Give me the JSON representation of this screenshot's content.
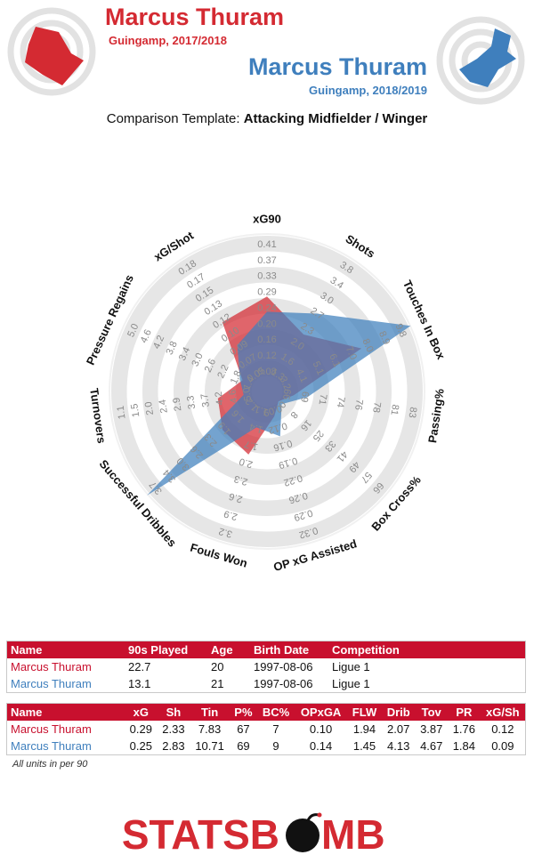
{
  "header": {
    "player_a": "Marcus Thuram",
    "club_season_a": "Guingamp, 2017/2018",
    "player_b": "Marcus Thuram",
    "club_season_b": "Guingamp, 2018/2019",
    "template_prefix": "Comparison Template:",
    "template_name": "Attacking Midfielder / Winger"
  },
  "colors": {
    "a": "#d42a32",
    "b": "#3f7fbd",
    "table_header": "#c8102e"
  },
  "chart_data": {
    "type": "radar",
    "axes": [
      {
        "label": "xG90",
        "ticks": [
          "0.08",
          "0.12",
          "0.16",
          "0.20",
          "0.24",
          "0.29",
          "0.33",
          "0.37",
          "0.41"
        ]
      },
      {
        "label": "Shots",
        "ticks": [
          "1.3",
          "1.6",
          "2.0",
          "2.3",
          "2.7",
          "3.0",
          "3.4",
          "3.8"
        ]
      },
      {
        "label": "Touches In Box",
        "ticks": [
          "3.2",
          "4.1",
          "5.1",
          "6.1",
          "7.0",
          "8.0",
          "8.9",
          "9.8"
        ]
      },
      {
        "label": "Passing%",
        "ticks": [
          "66",
          "69",
          "71",
          "74",
          "76",
          "78",
          "81",
          "83"
        ]
      },
      {
        "label": "Box Cross%",
        "ticks": [
          "0",
          "8",
          "16",
          "25",
          "33",
          "41",
          "49",
          "57",
          "66"
        ]
      },
      {
        "label": "OP xG Assisted",
        "ticks": [
          "0.09",
          "0.12",
          "0.16",
          "0.19",
          "0.22",
          "0.26",
          "0.29",
          "0.32"
        ]
      },
      {
        "label": "Fouls Won",
        "ticks": [
          "1.1",
          "1.4",
          "1.7",
          "2.0",
          "2.3",
          "2.6",
          "2.9",
          "3.2"
        ]
      },
      {
        "label": "Successful Dribbles",
        "ticks": [
          "1.2",
          "1.6",
          "1.9",
          "2.3",
          "2.6",
          "3.0",
          "3.4",
          "3.7"
        ]
      },
      {
        "label": "Turnovers",
        "ticks": [
          "5.0",
          "4.6",
          "4.2",
          "3.7",
          "3.3",
          "2.9",
          "2.4",
          "2.0",
          "1.5",
          "1.1"
        ]
      },
      {
        "label": "Pressure Regains",
        "ticks": [
          "1.4",
          "1.8",
          "2.2",
          "2.6",
          "3.0",
          "3.4",
          "3.8",
          "4.2",
          "4.6",
          "5.0"
        ]
      },
      {
        "label": "xG/Shot",
        "ticks": [
          "0.05",
          "0.07",
          "0.09",
          "0.10",
          "0.12",
          "0.13",
          "0.15",
          "0.17",
          "0.18"
        ]
      }
    ],
    "series": [
      {
        "name": "Marcus Thuram",
        "color": "#d42a32",
        "values": [
          0.29,
          2.33,
          7.83,
          67,
          7,
          0.1,
          1.94,
          2.07,
          3.87,
          1.76,
          0.12
        ]
      },
      {
        "name": "Marcus Thuram",
        "color": "#3f7fbd",
        "values": [
          0.25,
          2.83,
          10.71,
          69,
          9,
          0.14,
          1.45,
          4.13,
          4.67,
          1.84,
          0.09
        ]
      }
    ],
    "ranges": [
      [
        0.04,
        0.45
      ],
      [
        0.97,
        4.1
      ],
      [
        2.3,
        10.6
      ],
      [
        63,
        86
      ],
      [
        0,
        72
      ],
      [
        0.05,
        0.35
      ],
      [
        0.8,
        3.5
      ],
      [
        0.9,
        4.0
      ],
      [
        5.4,
        0.6
      ],
      [
        1.0,
        5.4
      ],
      [
        0.03,
        0.2
      ]
    ]
  },
  "table1": {
    "headers": [
      "Name",
      "90s Played",
      "Age",
      "Birth Date",
      "Competition"
    ],
    "rows": [
      [
        "Marcus Thuram",
        "22.7",
        "20",
        "1997-08-06",
        "Ligue 1"
      ],
      [
        "Marcus Thuram",
        "13.1",
        "21",
        "1997-08-06",
        "Ligue 1"
      ]
    ]
  },
  "table2": {
    "headers": [
      "Name",
      "xG",
      "Sh",
      "Tin",
      "P%",
      "BC%",
      "OPxGA",
      "FLW",
      "Drib",
      "Tov",
      "PR",
      "xG/Sh"
    ],
    "rows": [
      [
        "Marcus Thuram",
        "0.29",
        "2.33",
        "7.83",
        "67",
        "7",
        "0.10",
        "1.94",
        "2.07",
        "3.87",
        "1.76",
        "0.12"
      ],
      [
        "Marcus Thuram",
        "0.25",
        "2.83",
        "10.71",
        "69",
        "9",
        "0.14",
        "1.45",
        "4.13",
        "4.67",
        "1.84",
        "0.09"
      ]
    ]
  },
  "footnote": "All units in per 90",
  "logo": {
    "text_left": "STATSB",
    "text_right": "MB",
    "icon": "bomb-icon"
  }
}
